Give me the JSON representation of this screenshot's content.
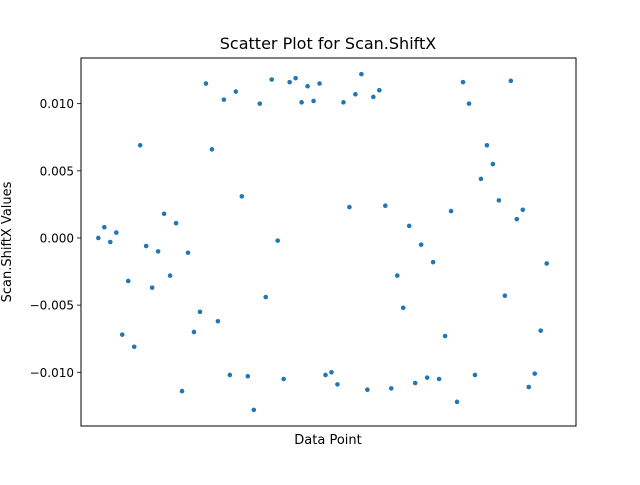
{
  "chart_data": {
    "type": "scatter",
    "title": "Scatter Plot for Scan.ShiftX",
    "xlabel": "Data Point",
    "ylabel": "Scan.ShiftX Values",
    "xlim": [
      -2.9,
      79.9
    ],
    "ylim": [
      -0.014,
      0.0134
    ],
    "xticks_visible": false,
    "yticks": [
      -0.01,
      -0.005,
      0.0,
      0.005,
      0.01
    ],
    "ytick_labels": [
      "−0.010",
      "−0.005",
      "0.000",
      "0.005",
      "0.010"
    ],
    "grid": false,
    "legend": "none",
    "marker_color": "#1f77b4",
    "series": [
      {
        "x": [
          0,
          1,
          2,
          3,
          4,
          5,
          6,
          7,
          8,
          9,
          10,
          11,
          12,
          13,
          14,
          15,
          16,
          17,
          18,
          19,
          20,
          21,
          22,
          23,
          24,
          25,
          26,
          27,
          28,
          29,
          30,
          31,
          32,
          33,
          34,
          35,
          36,
          37,
          38,
          39,
          40,
          41,
          42,
          43,
          44,
          45,
          46,
          47,
          48,
          49,
          50,
          51,
          52,
          53,
          54,
          55,
          56,
          57,
          58,
          59,
          60,
          61,
          62,
          63,
          64,
          65,
          66,
          67,
          68,
          69,
          70,
          71,
          72,
          73,
          74,
          75
        ],
        "y": [
          0.0,
          0.0008,
          -0.0003,
          0.0004,
          -0.0072,
          -0.0032,
          -0.0081,
          0.0069,
          -0.0006,
          -0.0037,
          -0.001,
          0.0018,
          -0.0028,
          0.0011,
          -0.0114,
          -0.0011,
          -0.007,
          -0.0055,
          0.0115,
          0.0066,
          -0.0062,
          0.0103,
          -0.0102,
          0.0109,
          0.0031,
          -0.0103,
          -0.0128,
          0.01,
          -0.0044,
          0.0118,
          -0.0002,
          -0.0105,
          0.0116,
          0.0119,
          0.0101,
          0.0113,
          0.0102,
          0.0115,
          -0.0102,
          -0.01,
          -0.0109,
          0.0101,
          0.0023,
          0.0107,
          0.0122,
          -0.0113,
          0.0105,
          0.011,
          0.0024,
          -0.0112,
          -0.0028,
          -0.0052,
          0.0009,
          -0.0108,
          -0.0005,
          -0.0104,
          -0.0018,
          -0.0105,
          -0.0073,
          0.002,
          -0.0122,
          0.0116,
          0.01,
          -0.0102,
          0.0044,
          0.0069,
          0.0055,
          0.0028,
          -0.0043,
          0.0117,
          0.0014,
          0.0021,
          -0.0111,
          -0.0101,
          -0.0069,
          -0.0019
        ]
      }
    ]
  }
}
